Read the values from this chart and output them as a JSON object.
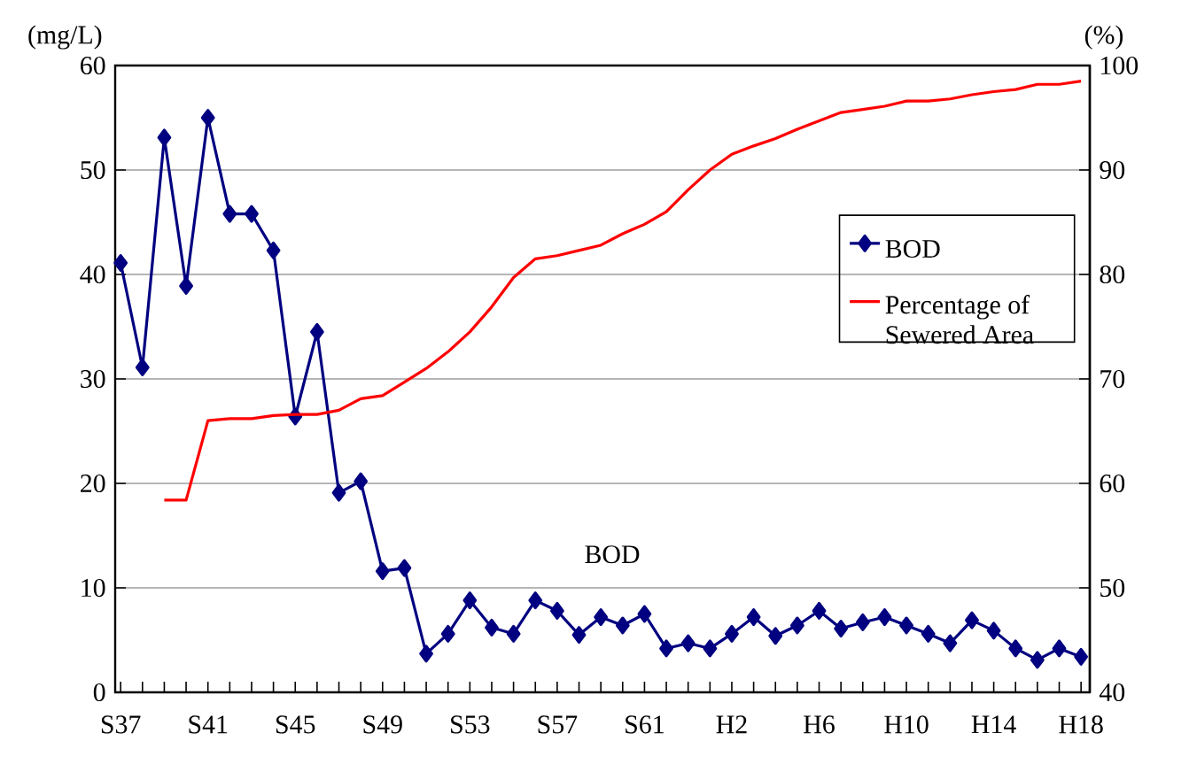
{
  "chart_data": {
    "type": "line",
    "categories": [
      "S37",
      null,
      null,
      null,
      "S41",
      null,
      null,
      null,
      "S45",
      null,
      null,
      null,
      "S49",
      null,
      null,
      null,
      "S53",
      null,
      null,
      null,
      "S57",
      null,
      null,
      null,
      "S61",
      null,
      null,
      null,
      "H2",
      null,
      null,
      null,
      "H6",
      null,
      null,
      null,
      "H10",
      null,
      null,
      null,
      "H14",
      null,
      null,
      null,
      "H18"
    ],
    "series": [
      {
        "name": "BOD",
        "color": "#000080",
        "marker": "diamond",
        "values": [
          41.1,
          31.1,
          53.1,
          38.9,
          55.0,
          45.8,
          45.8,
          42.3,
          26.4,
          34.5,
          19.1,
          20.2,
          11.6,
          11.9,
          3.7,
          5.6,
          8.8,
          6.2,
          5.6,
          8.8,
          7.8,
          5.5,
          7.2,
          6.4,
          7.5,
          4.2,
          4.7,
          4.2,
          5.6,
          7.2,
          5.4,
          6.4,
          7.8,
          6.1,
          6.7,
          7.2,
          6.4,
          5.6,
          4.7,
          6.9,
          5.9,
          4.2,
          3.1,
          4.2,
          3.4
        ]
      },
      {
        "name": "Percentage of Sewered Area",
        "color": "#ff0000",
        "marker": "none",
        "axis": "y2",
        "values": [
          null,
          null,
          58.4,
          58.4,
          66.0,
          66.2,
          66.2,
          66.5,
          66.6,
          66.6,
          67.0,
          68.1,
          68.4,
          69.7,
          71.0,
          72.6,
          74.5,
          76.9,
          79.7,
          81.5,
          81.8,
          82.3,
          82.8,
          83.9,
          84.8,
          86.0,
          88.1,
          90.0,
          91.5,
          92.3,
          93.0,
          93.9,
          94.7,
          95.5,
          95.8,
          96.1,
          96.6,
          96.6,
          96.8,
          97.2,
          97.5,
          97.7,
          98.2,
          98.2,
          98.5
        ]
      }
    ],
    "ylabel": "(mg/L)",
    "y2label": "(%)",
    "ylim": [
      0,
      60
    ],
    "yticks": [
      0,
      10,
      20,
      30,
      40,
      50,
      60
    ],
    "y2lim": [
      40,
      100
    ],
    "y2ticks": [
      40,
      50,
      60,
      70,
      80,
      90,
      100
    ],
    "grid": "y",
    "legend": "right",
    "annotations": [
      "BOD"
    ]
  }
}
